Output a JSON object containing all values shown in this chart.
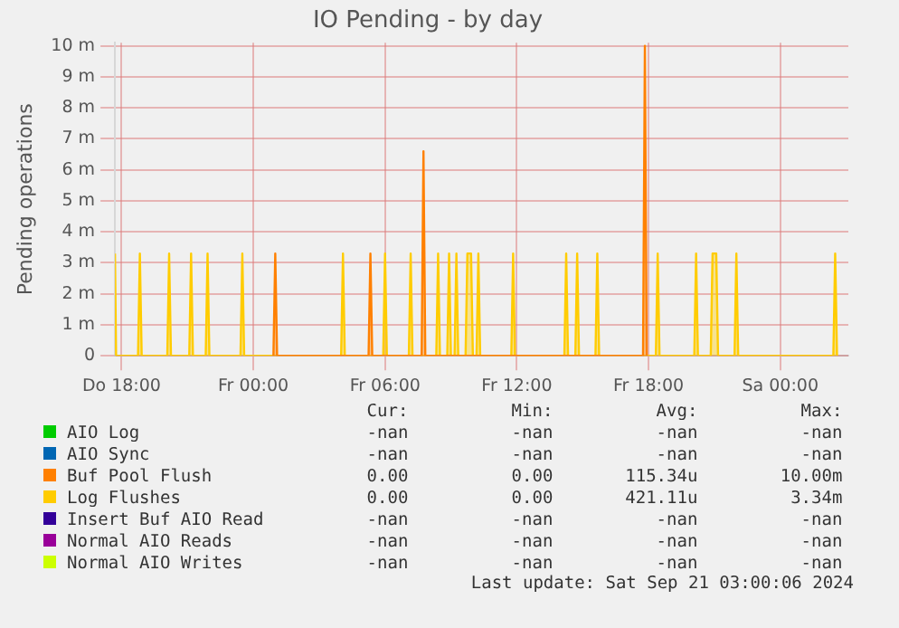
{
  "chart_data": {
    "type": "area",
    "title": "IO Pending - by day",
    "ylabel": "Pending operations",
    "xlim": [
      "2024-09-19T17:42",
      "2024-09-21T03:06"
    ],
    "xticks": [
      {
        "value": "2024-09-19T18:00",
        "label": "Do 18:00"
      },
      {
        "value": "2024-09-20T00:00",
        "label": "Fr 00:00"
      },
      {
        "value": "2024-09-20T06:00",
        "label": "Fr 06:00"
      },
      {
        "value": "2024-09-20T12:00",
        "label": "Fr 12:00"
      },
      {
        "value": "2024-09-20T18:00",
        "label": "Fr 18:00"
      },
      {
        "value": "2024-09-21T00:00",
        "label": "Sa 00:00"
      }
    ],
    "ylim": [
      0,
      10.1
    ],
    "yticks": [
      0,
      {
        "value": 1,
        "label": "1 m"
      },
      {
        "value": 2,
        "label": "2 m"
      },
      {
        "value": 3,
        "label": "3 m"
      },
      {
        "value": 4,
        "label": "4 m"
      },
      {
        "value": 5,
        "label": "5 m"
      },
      {
        "value": 6,
        "label": "6 m"
      },
      {
        "value": 7,
        "label": "7 m"
      },
      {
        "value": 8,
        "label": "8 m"
      },
      {
        "value": 9,
        "label": "9 m"
      },
      {
        "value": 10,
        "label": "10 m"
      }
    ],
    "grid": true,
    "legend": "bottom",
    "series": [
      {
        "name": "AIO Log",
        "color": "#00cc00"
      },
      {
        "name": "AIO Sync",
        "color": "#0066b3"
      },
      {
        "name": "Buf Pool Flush",
        "color": "#ff8000",
        "x": [
          "2024-09-20T00:55",
          "2024-09-20T01:00",
          "2024-09-20T01:05",
          "2024-09-20T05:15",
          "2024-09-20T05:20",
          "2024-09-20T05:25",
          "2024-09-20T07:40",
          "2024-09-20T07:45",
          "2024-09-20T07:50",
          "2024-09-20T17:45",
          "2024-09-20T17:50",
          "2024-09-20T17:55"
        ],
        "values": [
          0,
          3.3,
          0,
          0,
          3.3,
          0,
          0,
          6.6,
          0,
          0,
          10,
          0
        ]
      },
      {
        "name": "Log Flushes",
        "color": "#ffcc00",
        "x": [
          "2024-09-19T17:42",
          "2024-09-19T17:45",
          "2024-09-19T18:45",
          "2024-09-19T18:50",
          "2024-09-19T18:55",
          "2024-09-19T20:05",
          "2024-09-19T20:10",
          "2024-09-19T20:15",
          "2024-09-19T21:05",
          "2024-09-19T21:10",
          "2024-09-19T21:15",
          "2024-09-19T21:50",
          "2024-09-19T21:55",
          "2024-09-19T22:00",
          "2024-09-19T23:25",
          "2024-09-19T23:30",
          "2024-09-19T23:35",
          "2024-09-20T04:00",
          "2024-09-20T04:05",
          "2024-09-20T04:10",
          "2024-09-20T05:55",
          "2024-09-20T06:00",
          "2024-09-20T06:05",
          "2024-09-20T07:05",
          "2024-09-20T07:10",
          "2024-09-20T07:15",
          "2024-09-20T08:20",
          "2024-09-20T08:25",
          "2024-09-20T08:30",
          "2024-09-20T08:50",
          "2024-09-20T08:55",
          "2024-09-20T09:00",
          "2024-09-20T09:10",
          "2024-09-20T09:15",
          "2024-09-20T09:20",
          "2024-09-20T09:40",
          "2024-09-20T09:45",
          "2024-09-20T09:55",
          "2024-09-20T10:00",
          "2024-09-20T10:10",
          "2024-09-20T10:15",
          "2024-09-20T10:20",
          "2024-09-20T11:45",
          "2024-09-20T11:50",
          "2024-09-20T11:55",
          "2024-09-20T14:10",
          "2024-09-20T14:15",
          "2024-09-20T14:20",
          "2024-09-20T14:40",
          "2024-09-20T14:45",
          "2024-09-20T14:50",
          "2024-09-20T15:35",
          "2024-09-20T15:40",
          "2024-09-20T15:45",
          "2024-09-20T18:20",
          "2024-09-20T18:25",
          "2024-09-20T18:30",
          "2024-09-20T20:05",
          "2024-09-20T20:10",
          "2024-09-20T20:15",
          "2024-09-20T20:50",
          "2024-09-20T20:55",
          "2024-09-20T21:05",
          "2024-09-20T21:10",
          "2024-09-20T21:55",
          "2024-09-20T22:00",
          "2024-09-20T22:05",
          "2024-09-21T02:25",
          "2024-09-21T02:30",
          "2024-09-21T02:35"
        ],
        "values": [
          3.3,
          0,
          0,
          3.3,
          0,
          0,
          3.3,
          0,
          0,
          3.3,
          0,
          0,
          3.3,
          0,
          0,
          3.3,
          0,
          0,
          3.3,
          0,
          0,
          3.3,
          0,
          0,
          3.3,
          0,
          0,
          3.3,
          0,
          0,
          3.3,
          0,
          0,
          3.3,
          0,
          0,
          3.3,
          3.3,
          0,
          0,
          3.3,
          0,
          0,
          3.3,
          0,
          0,
          3.3,
          0,
          0,
          3.3,
          0,
          0,
          3.3,
          0,
          0,
          3.3,
          0,
          0,
          3.3,
          0,
          0,
          3.3,
          3.3,
          0,
          0,
          3.3,
          0,
          0,
          3.3,
          0
        ]
      },
      {
        "name": "Insert Buf AIO Read",
        "color": "#330099"
      },
      {
        "name": "Normal AIO Reads",
        "color": "#990099"
      },
      {
        "name": "Normal AIO Writes",
        "color": "#ccff00"
      }
    ],
    "annotations": [
      "Cur:",
      "Min:",
      "Avg:",
      "Max:",
      "-nan",
      "-nan",
      "-nan",
      "-nan",
      "-nan",
      "-nan",
      "-nan",
      "-nan",
      "0.00",
      "0.00",
      "115.34u",
      "10.00m",
      "0.00",
      "0.00",
      "421.11u",
      "3.34m",
      "-nan",
      "-nan",
      "-nan",
      "-nan",
      "-nan",
      "-nan",
      "-nan",
      "-nan",
      "-nan",
      "-nan",
      "-nan",
      "-nan",
      "Last update: Sat Sep 21 03:00:06 2024"
    ]
  }
}
